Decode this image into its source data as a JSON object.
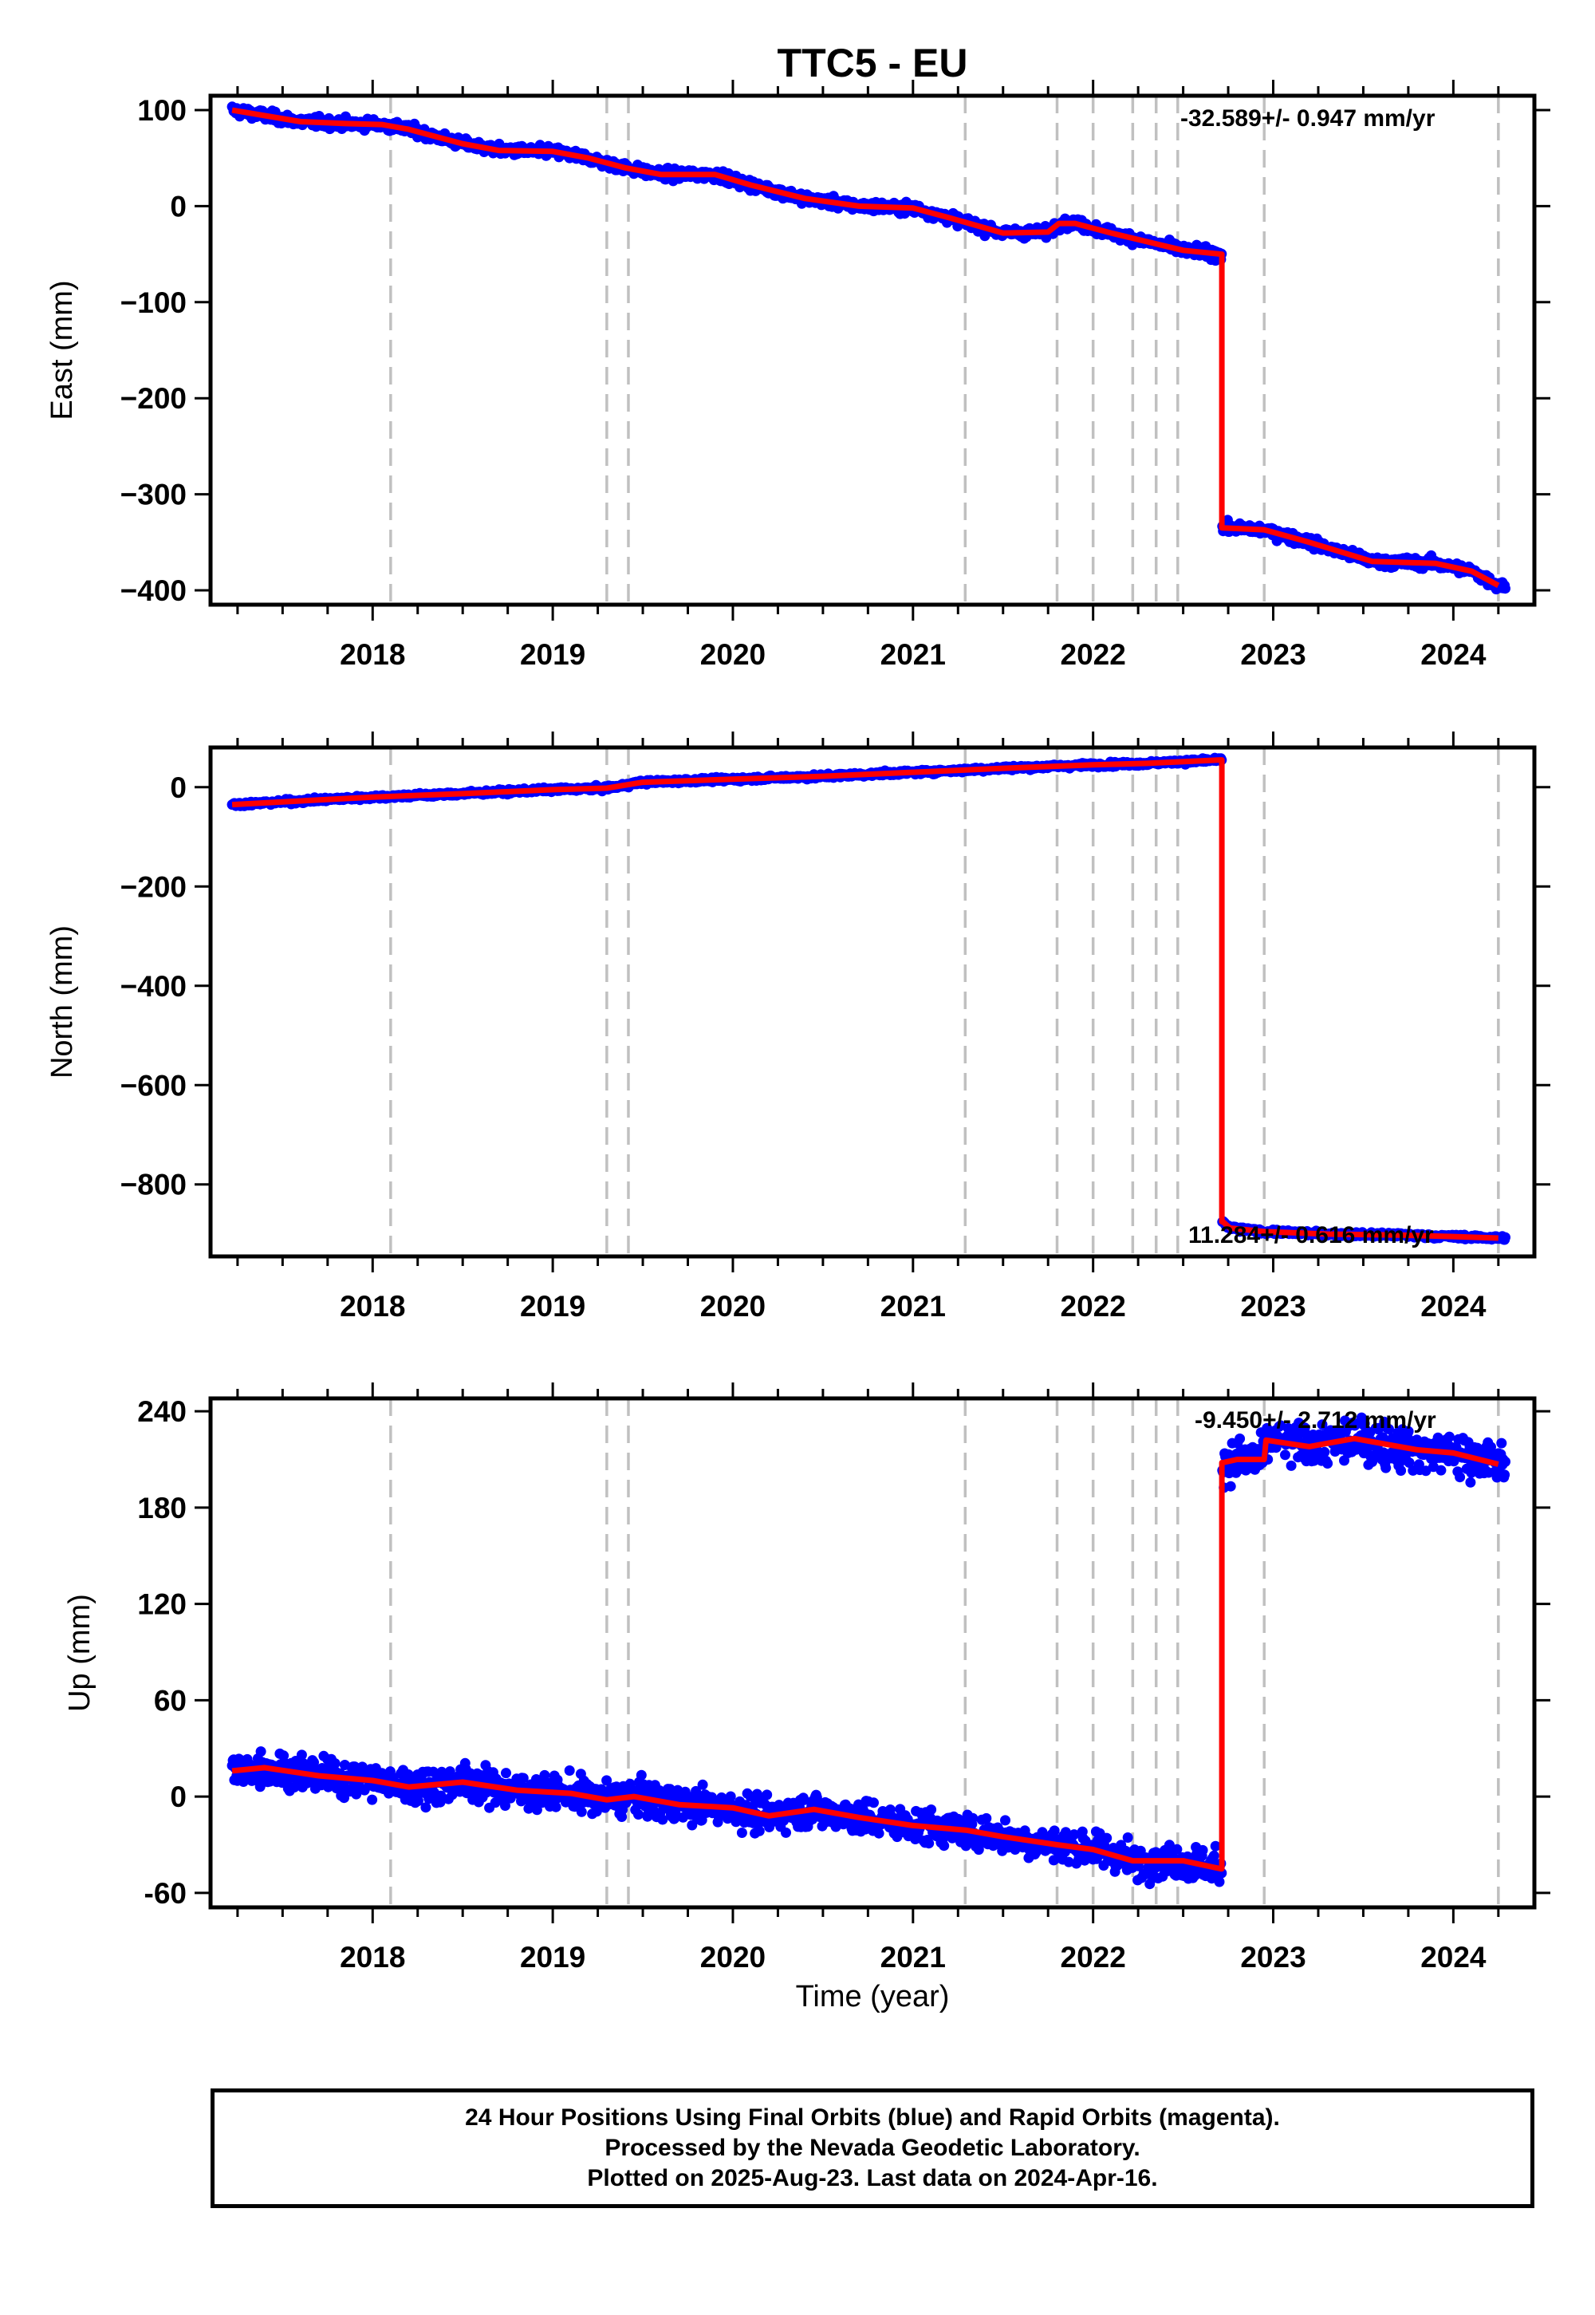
{
  "title": "TTC5 - EU",
  "x_axis_label": "Time (year)",
  "caption": [
    "24 Hour Positions Using Final Orbits (blue) and Rapid Orbits (magenta).",
    "Processed by the Nevada Geodetic Laboratory.",
    "Plotted on 2025-Aug-23. Last data on 2024-Apr-16."
  ],
  "colors": {
    "final_orbits": "#0000ff",
    "model_fit": "#ff0000",
    "event_lines": "#c0c0c0",
    "frame": "#000000"
  },
  "chart_data": [
    {
      "type": "scatter",
      "component": "east",
      "ylabel": "East (mm)",
      "xlabel": "",
      "xlim": [
        2017.1,
        2024.45
      ],
      "ylim": [
        -415,
        115
      ],
      "x_ticks": [
        2018,
        2019,
        2020,
        2021,
        2022,
        2023,
        2024
      ],
      "y_ticks": [
        100,
        0,
        -100,
        -200,
        -300,
        -400
      ],
      "y_tick_labels": [
        "100",
        "0",
        "−100",
        "−200",
        "−300",
        "−400"
      ],
      "grid": false,
      "event_lines": [
        2018.1,
        2019.3,
        2019.42,
        2021.29,
        2021.8,
        2022.0,
        2022.22,
        2022.35,
        2022.47,
        2022.95,
        2024.25
      ],
      "rate_annotation": "-32.589+/- 0.947 mm/yr",
      "series": [
        {
          "role": "model_fit",
          "x": [
            2017.22,
            2017.6,
            2017.85,
            2018.05,
            2018.2,
            2018.5,
            2018.7,
            2019.0,
            2019.2,
            2019.4,
            2019.6,
            2019.9,
            2020.1,
            2020.4,
            2020.7,
            2021.0,
            2021.2,
            2021.5,
            2021.75,
            2021.81,
            2021.9,
            2022.1,
            2022.3,
            2022.5,
            2022.71
          ],
          "y": [
            100,
            88,
            86,
            85,
            80,
            65,
            58,
            57,
            50,
            40,
            33,
            33,
            22,
            8,
            0,
            -2,
            -12,
            -28,
            -27,
            -18,
            -18,
            -28,
            -37,
            -46,
            -50
          ]
        },
        {
          "role": "model_fit",
          "x": [
            2022.72,
            2022.95,
            2023.2,
            2023.55,
            2023.9,
            2024.1,
            2024.25
          ],
          "y": [
            -335,
            -337,
            -350,
            -370,
            -372,
            -380,
            -395
          ]
        }
      ],
      "offsets": [
        {
          "x": 2022.715,
          "y_from": -50,
          "y_to": -335
        }
      ]
    },
    {
      "type": "scatter",
      "component": "north",
      "ylabel": "North (mm)",
      "xlabel": "",
      "xlim": [
        2017.1,
        2024.45
      ],
      "ylim": [
        -945,
        80
      ],
      "x_ticks": [
        2018,
        2019,
        2020,
        2021,
        2022,
        2023,
        2024
      ],
      "y_ticks": [
        0,
        -200,
        -400,
        -600,
        -800
      ],
      "y_tick_labels": [
        "0",
        "−200",
        "−400",
        "−600",
        "−800"
      ],
      "grid": false,
      "event_lines": [
        2018.1,
        2019.3,
        2019.42,
        2021.29,
        2021.8,
        2022.0,
        2022.22,
        2022.35,
        2022.47,
        2022.95,
        2024.25
      ],
      "rate_annotation": "11.284+/- 0.616 mm/yr",
      "series": [
        {
          "role": "model_fit",
          "x": [
            2017.22,
            2018.0,
            2018.5,
            2019.0,
            2019.3,
            2019.5,
            2020.0,
            2020.5,
            2021.0,
            2021.5,
            2022.0,
            2022.3,
            2022.71
          ],
          "y": [
            -35,
            -20,
            -13,
            -5,
            -2,
            10,
            16,
            22,
            30,
            38,
            45,
            48,
            55
          ]
        },
        {
          "role": "model_fit",
          "x": [
            2022.72,
            2022.76,
            2022.95,
            2023.3,
            2023.7,
            2024.0,
            2024.25
          ],
          "y": [
            -875,
            -888,
            -895,
            -900,
            -902,
            -905,
            -908
          ]
        }
      ],
      "offsets": [
        {
          "x": 2022.715,
          "y_from": 55,
          "y_to": -875
        }
      ]
    },
    {
      "type": "scatter",
      "component": "up",
      "ylabel": "Up (mm)",
      "xlabel": "Time (year)",
      "xlim": [
        2017.1,
        2024.45
      ],
      "ylim": [
        -69,
        248
      ],
      "x_ticks": [
        2018,
        2019,
        2020,
        2021,
        2022,
        2023,
        2024
      ],
      "y_ticks": [
        240,
        180,
        120,
        60,
        0,
        -60
      ],
      "y_tick_labels": [
        "240",
        "180",
        "120",
        "60",
        "0",
        "-60"
      ],
      "grid": false,
      "event_lines": [
        2018.1,
        2019.3,
        2019.42,
        2021.29,
        2021.8,
        2022.0,
        2022.22,
        2022.35,
        2022.47,
        2022.95,
        2024.25
      ],
      "rate_annotation": "-9.450+/- 2.712 mm/yr",
      "series": [
        {
          "role": "model_fit",
          "x": [
            2017.22,
            2017.4,
            2017.7,
            2018.0,
            2018.2,
            2018.5,
            2018.8,
            2019.1,
            2019.3,
            2019.45,
            2019.7,
            2020.0,
            2020.2,
            2020.45,
            2020.7,
            2021.0,
            2021.3,
            2021.5,
            2021.8,
            2022.0,
            2022.22,
            2022.5,
            2022.71
          ],
          "y": [
            16,
            18,
            13,
            10,
            6,
            9,
            4,
            2,
            -2,
            0,
            -5,
            -7,
            -12,
            -8,
            -13,
            -18,
            -21,
            -25,
            -30,
            -33,
            -40,
            -40,
            -45
          ]
        },
        {
          "role": "model_fit",
          "x": [
            2022.72,
            2022.8,
            2022.95,
            2022.96,
            2023.2,
            2023.45,
            2023.8,
            2024.0,
            2024.25
          ],
          "y": [
            208,
            210,
            210,
            222,
            218,
            223,
            216,
            214,
            207
          ]
        }
      ],
      "offsets": [
        {
          "x": 2022.715,
          "y_from": -45,
          "y_to": 208
        }
      ]
    }
  ]
}
